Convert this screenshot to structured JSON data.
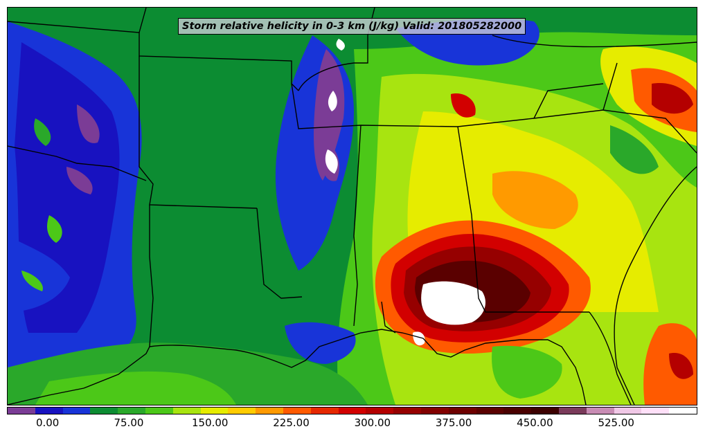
{
  "title": "Storm relative helicity in 0-3 km (J/kg) Valid: 201805282000",
  "colorbar": {
    "colors": [
      "#7b3c96",
      "#1812c0",
      "#1834d8",
      "#0c8c32",
      "#2aa82a",
      "#4cc818",
      "#a8e410",
      "#e6ec00",
      "#ffcc00",
      "#ff9a00",
      "#ff5a00",
      "#e62800",
      "#d20000",
      "#b40000",
      "#960000",
      "#820000",
      "#6e0000",
      "#5a0000",
      "#4a0000",
      "#3c0000",
      "#7a3a5a",
      "#c88cb4",
      "#f0c8e6",
      "#ffe0f8",
      "#ffffff"
    ],
    "tick_labels": [
      "0.00",
      "75.00",
      "150.00",
      "225.00",
      "300.00",
      "375.00",
      "450.00",
      "525.00"
    ],
    "tick_values": [
      0,
      75,
      150,
      225,
      300,
      375,
      450,
      525
    ],
    "min": -37.5,
    "max": 600
  },
  "palette": {
    "negative": "#7b3c96",
    "low": "#1812c0",
    "moderate": "#0c8c32",
    "elevated": "#e6ec00",
    "high": "#ff5a00",
    "very_high": "#8c0000",
    "extreme": "#ffffff"
  }
}
